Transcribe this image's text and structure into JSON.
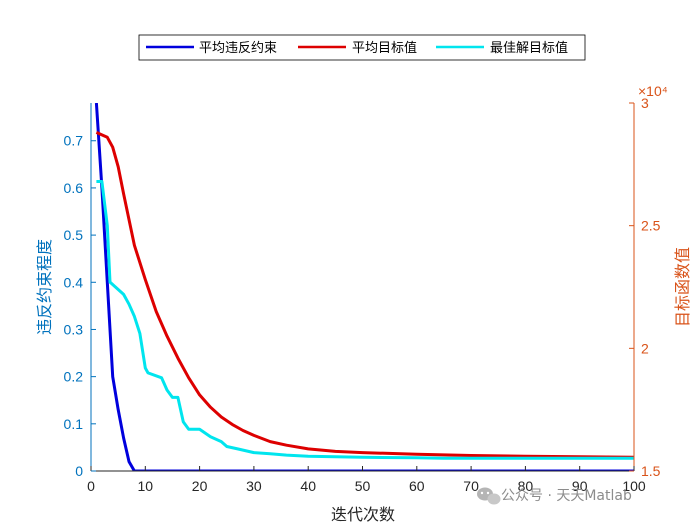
{
  "chart_data": {
    "type": "line",
    "xlabel": "迭代次数",
    "ylabel_left": "违反约束程度",
    "ylabel_right": "目标函数值",
    "right_axis_exponent": "×10⁴",
    "xlim": [
      0,
      100
    ],
    "ylim_left": [
      0,
      0.78
    ],
    "ylim_right": [
      1.5,
      3.0
    ],
    "x_ticks": [
      0,
      10,
      20,
      30,
      40,
      50,
      60,
      70,
      80,
      90,
      100
    ],
    "y_left_ticks": [
      0,
      0.1,
      0.2,
      0.3,
      0.4,
      0.5,
      0.6,
      0.7
    ],
    "y_right_ticks": [
      1.5,
      2,
      2.5,
      3
    ],
    "legend_position": "top-center",
    "grid": false,
    "series": [
      {
        "name": "平均违反约束",
        "axis": "left",
        "color": "#0000dd",
        "x": [
          1,
          2,
          3,
          4,
          5,
          6,
          7,
          8,
          100
        ],
        "y": [
          0.78,
          0.6,
          0.4,
          0.2,
          0.13,
          0.07,
          0.02,
          0,
          0
        ]
      },
      {
        "name": "平均目标值",
        "axis": "right",
        "color": "#dd0000",
        "x": [
          1,
          2,
          3,
          4,
          5,
          6,
          8,
          10,
          12,
          14,
          16,
          18,
          20,
          22,
          24,
          26,
          28,
          30,
          33,
          36,
          40,
          45,
          50,
          60,
          70,
          80,
          90,
          100
        ],
        "y": [
          2.88,
          2.87,
          2.86,
          2.82,
          2.74,
          2.63,
          2.42,
          2.28,
          2.15,
          2.05,
          1.96,
          1.88,
          1.81,
          1.76,
          1.72,
          1.69,
          1.665,
          1.645,
          1.62,
          1.605,
          1.59,
          1.58,
          1.575,
          1.568,
          1.563,
          1.56,
          1.558,
          1.556
        ]
      },
      {
        "name": "最佳解目标值",
        "axis": "right",
        "color": "#00e5ee",
        "x": [
          1,
          2,
          3,
          3.5,
          6,
          7,
          8,
          9,
          10,
          10.5,
          13,
          14,
          15,
          16,
          17,
          18,
          20,
          22,
          24,
          25,
          27,
          30,
          33,
          36,
          40,
          50,
          60,
          65,
          70,
          80,
          90,
          100
        ],
        "y": [
          2.68,
          2.68,
          2.5,
          2.27,
          2.22,
          2.18,
          2.13,
          2.06,
          1.92,
          1.9,
          1.88,
          1.83,
          1.8,
          1.8,
          1.7,
          1.67,
          1.67,
          1.64,
          1.62,
          1.6,
          1.59,
          1.575,
          1.57,
          1.565,
          1.56,
          1.556,
          1.554,
          1.552,
          1.552,
          1.552,
          1.552,
          1.552
        ]
      }
    ]
  },
  "watermark": {
    "text": "公众号 · 天天Matlab"
  }
}
